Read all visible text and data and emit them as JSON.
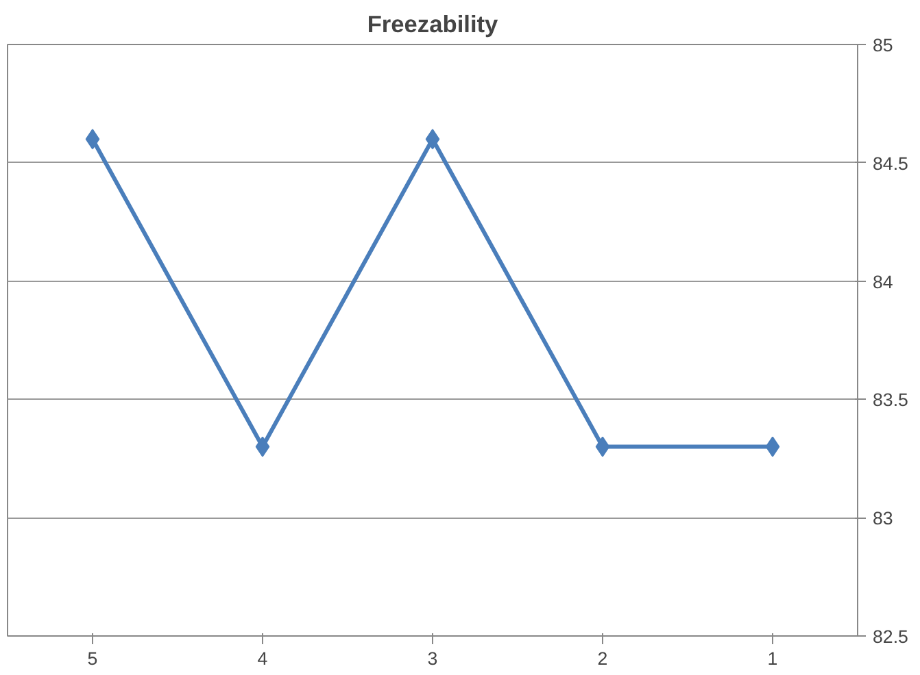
{
  "chart_data": {
    "type": "line",
    "title": "Freezability",
    "categories": [
      "5",
      "4",
      "3",
      "2",
      "1"
    ],
    "series": [
      {
        "color": "#4a7ebb",
        "values": [
          84.6,
          83.3,
          84.6,
          83.3,
          83.3
        ]
      }
    ],
    "ylim": [
      82.5,
      85
    ],
    "yticks": [
      82.5,
      83,
      83.5,
      84,
      84.5,
      85
    ],
    "grid": "y",
    "marker": "diamond",
    "line_style": "solid"
  }
}
